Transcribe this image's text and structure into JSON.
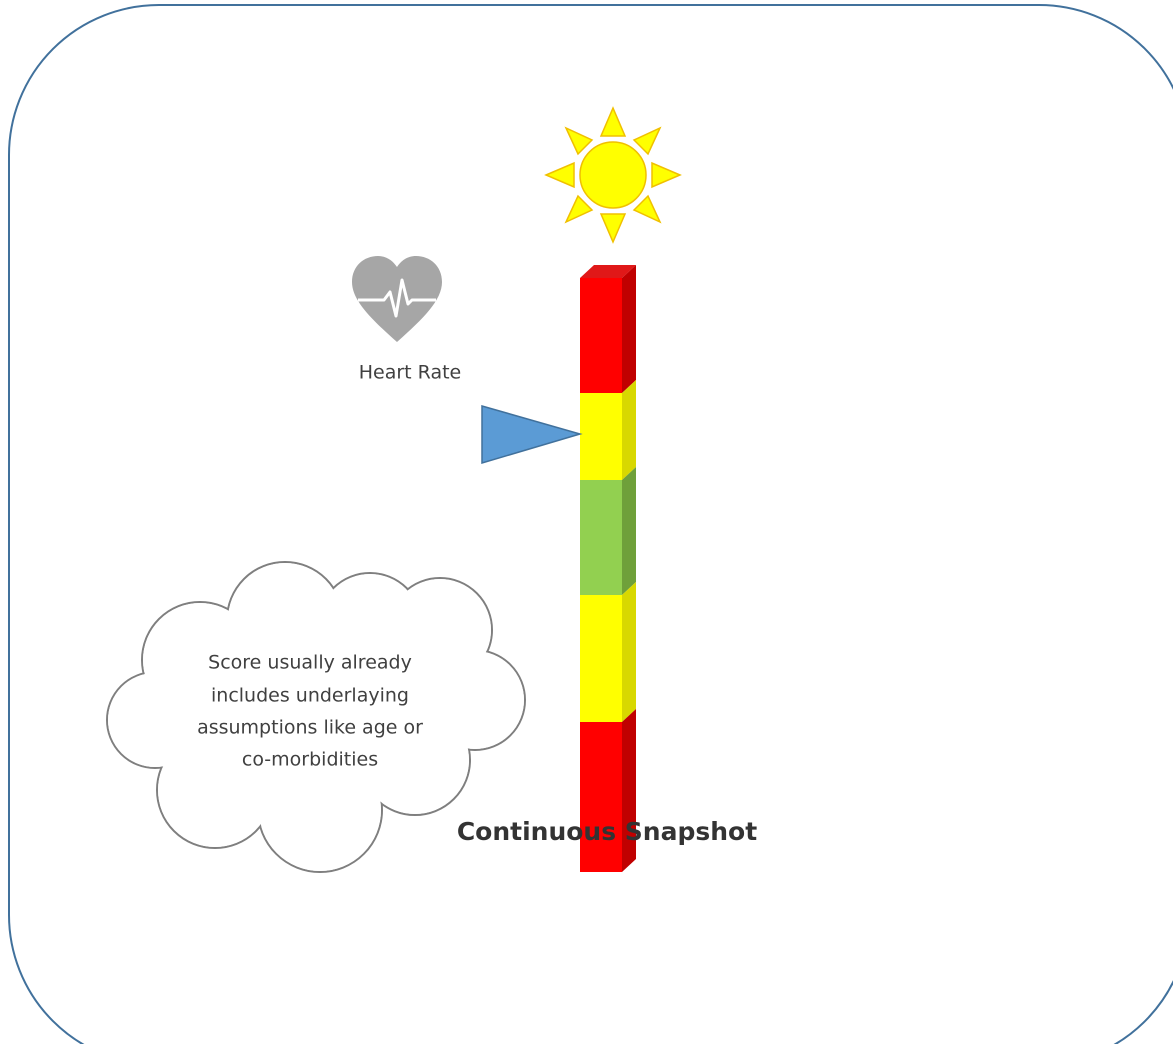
{
  "heart_label": "Heart Rate",
  "cloud": {
    "lines": [
      "Score usually already",
      "includes underlaying",
      "assumptions like age or",
      "co-morbidities"
    ]
  },
  "caption": "Continuous Snapshot"
}
